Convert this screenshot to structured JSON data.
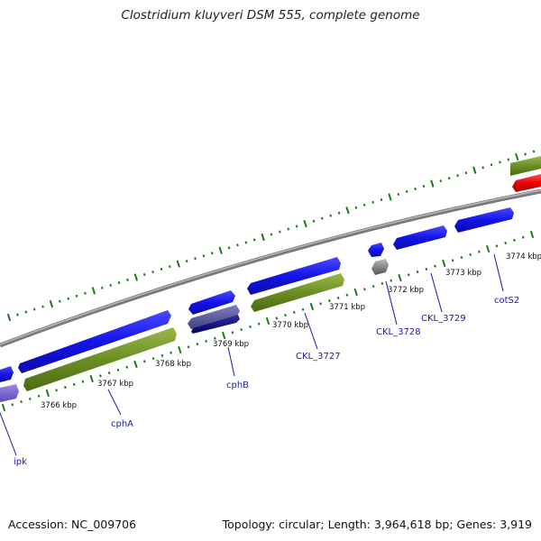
{
  "title": "Clostridium kluyveri DSM 555, complete genome",
  "footer": {
    "accession": "Accession: NC_009706",
    "summary": "Topology: circular; Length: 3,964,618 bp; Genes: 3,919"
  },
  "colors": {
    "cds_forward": "#1010e6",
    "cds_reverse": "#1010e6",
    "rrna_olive": "#6b8e23",
    "rrna_red": "#ee0000",
    "backbone": "#8a8a8a",
    "ticks": "#1a7a1a",
    "label": "#1a1aa6"
  },
  "kbp_labels": [
    {
      "text": "3766 kbp"
    },
    {
      "text": "3767 kbp"
    },
    {
      "text": "3768 kbp"
    },
    {
      "text": "3769 kbp"
    },
    {
      "text": "3770 kbp"
    },
    {
      "text": "3771 kbp"
    },
    {
      "text": "3772 kbp"
    },
    {
      "text": "3773 kbp"
    },
    {
      "text": "3774 kbp"
    }
  ],
  "gene_labels": [
    {
      "text": "ipk"
    },
    {
      "text": "cphA"
    },
    {
      "text": "cphB"
    },
    {
      "text": "CKL_3727"
    },
    {
      "text": "CKL_3728"
    },
    {
      "text": "CKL_3729"
    },
    {
      "text": "cotS2"
    }
  ]
}
